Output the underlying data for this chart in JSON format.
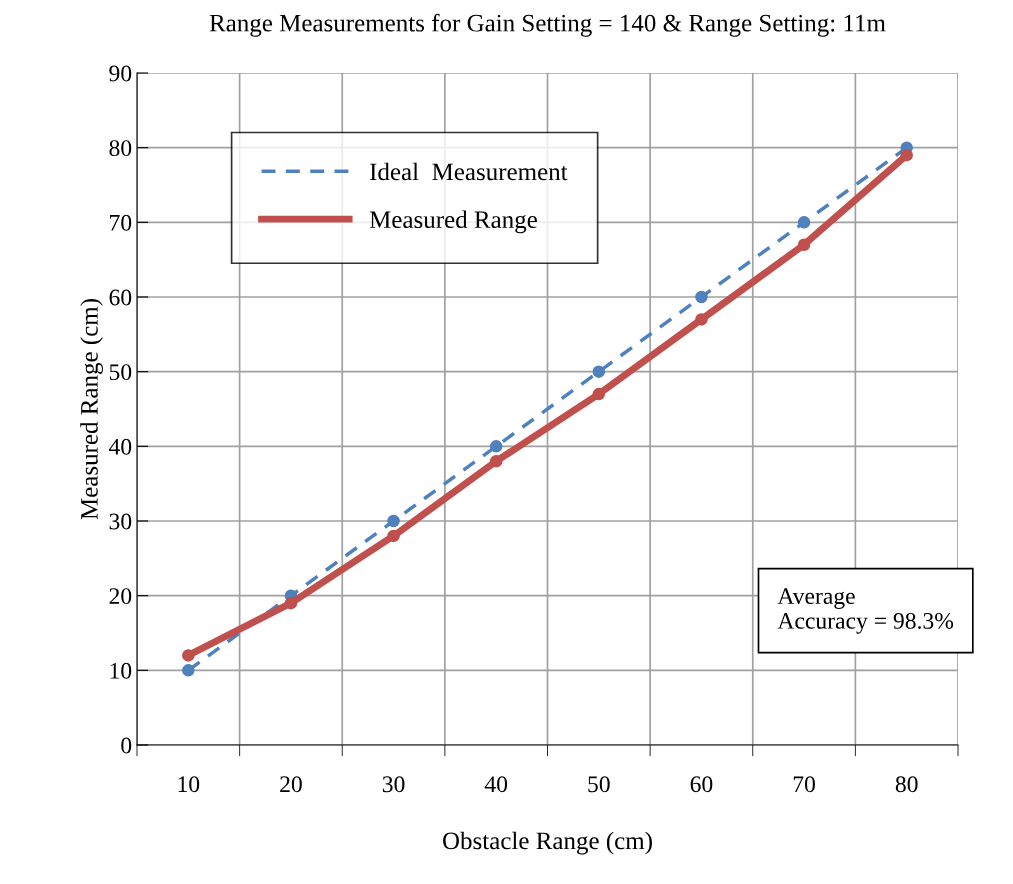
{
  "chart_data": {
    "type": "line",
    "title": "Range Measurements for Gain Setting = 140 & Range Setting: 11m",
    "xlabel": "Obstacle Range (cm)",
    "ylabel": "Measured Range (cm)",
    "categories": [
      "10",
      "20",
      "30",
      "40",
      "50",
      "60",
      "70",
      "80"
    ],
    "series": [
      {
        "name": "Ideal  Measurement",
        "color": "#4f81bd",
        "line_style": "dashed",
        "values": [
          10,
          20,
          30,
          40,
          50,
          60,
          70,
          80
        ]
      },
      {
        "name": "Measured Range",
        "color": "#c0504d",
        "line_style": "solid",
        "values": [
          12,
          19,
          28,
          38,
          47,
          57,
          67,
          79
        ]
      }
    ],
    "ylim": [
      0,
      90
    ],
    "yticks": [
      0,
      10,
      20,
      30,
      40,
      50,
      60,
      70,
      80,
      90
    ],
    "grid": true,
    "legend": "top left",
    "marker": "circle",
    "annotations": [
      "Average\nAccuracy = 98.3%"
    ]
  }
}
